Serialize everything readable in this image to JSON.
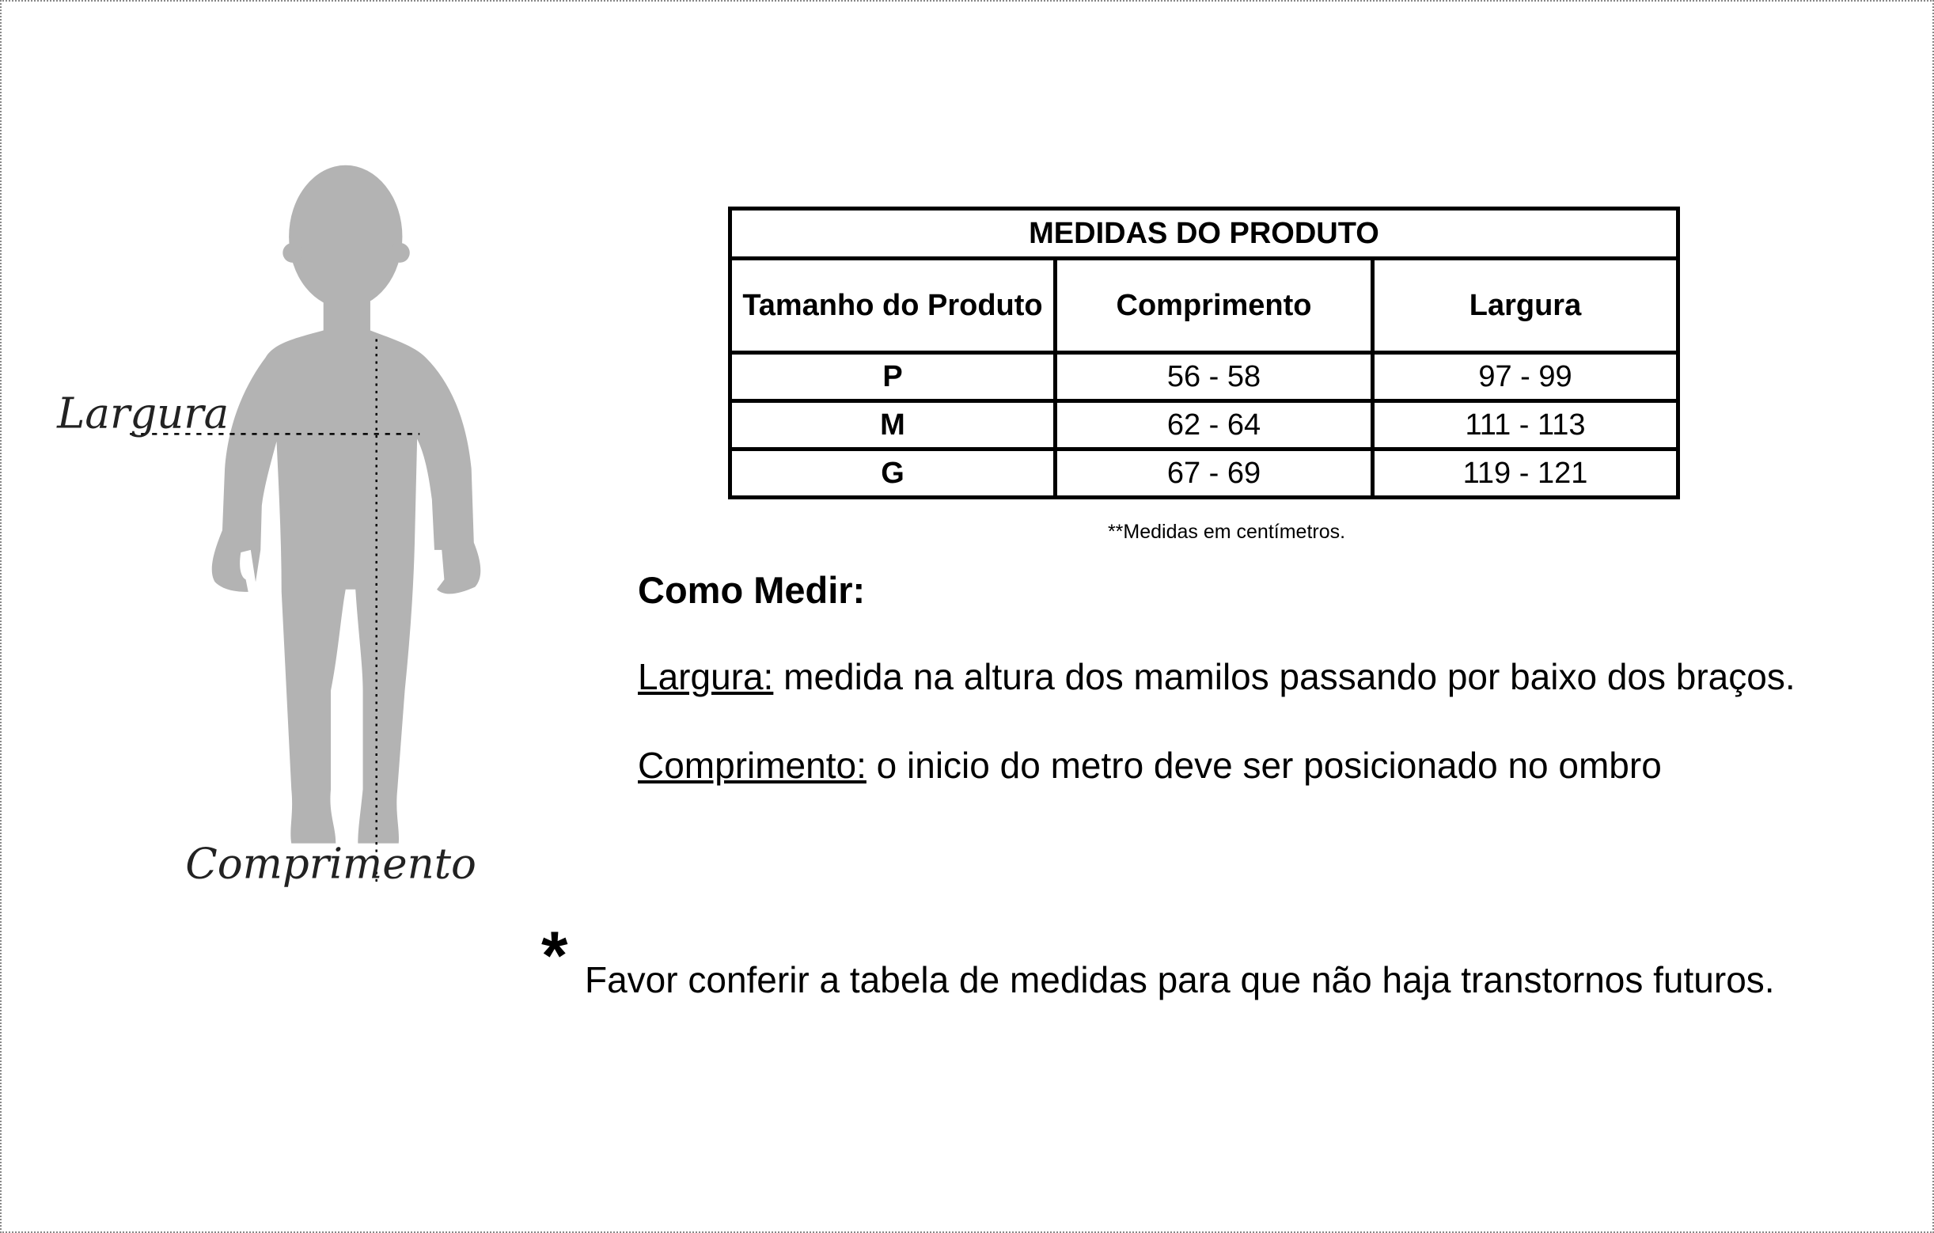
{
  "figure": {
    "width_label": "Largura",
    "length_label": "Comprimento",
    "silhouette_color": "#b3b3b3"
  },
  "table": {
    "title": "MEDIDAS DO PRODUTO",
    "headers": [
      "Tamanho do Produto",
      "Comprimento",
      "Largura"
    ],
    "rows": [
      [
        "P",
        "56 - 58",
        "97 - 99"
      ],
      [
        "M",
        "62 - 64",
        "111 - 113"
      ],
      [
        "G",
        "67 - 69",
        "119 - 121"
      ]
    ],
    "note": "**Medidas em centímetros."
  },
  "instructions": {
    "heading": "Como Medir:",
    "width_term": "Largura:",
    "width_text": " medida na altura dos mamilos passando por baixo dos braços.",
    "length_term": "Comprimento:",
    "length_text": " o inicio do metro deve ser posicionado no ombro"
  },
  "warning": {
    "asterisk": "*",
    "text": "Favor conferir a tabela de medidas para que não haja transtornos futuros."
  }
}
